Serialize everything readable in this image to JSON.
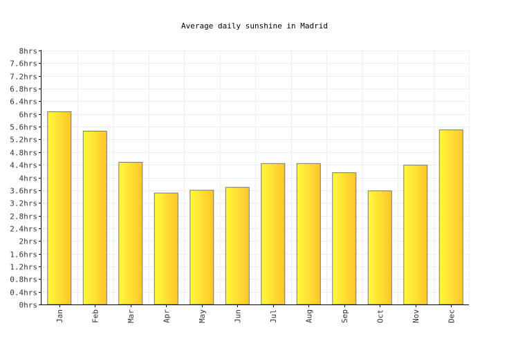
{
  "chart_data": {
    "type": "bar",
    "title": "Average daily sunshine in Madrid",
    "categories": [
      "Jan",
      "Feb",
      "Mar",
      "Apr",
      "May",
      "Jun",
      "Jul",
      "Aug",
      "Sep",
      "Oct",
      "Nov",
      "Dec"
    ],
    "values": [
      6.07,
      5.46,
      4.48,
      3.51,
      3.6,
      3.69,
      4.44,
      4.44,
      4.15,
      3.58,
      4.39,
      5.5
    ],
    "ylim": [
      0,
      8
    ],
    "yticks": [
      "0hrs",
      "0.4hrs",
      "0.8hrs",
      "1.2hrs",
      "1.6hrs",
      "2hrs",
      "2.4hrs",
      "2.8hrs",
      "3.2hrs",
      "3.6hrs",
      "4hrs",
      "4.4hrs",
      "4.8hrs",
      "5.2hrs",
      "5.6hrs",
      "6hrs",
      "6.4hrs",
      "6.8hrs",
      "7.2hrs",
      "7.6hrs",
      "8hrs"
    ],
    "xlabel": "",
    "ylabel": "",
    "grid": true,
    "colors": {
      "bar_light": "#fff93b",
      "bar_dark": "#ffc52a",
      "bar_border": "#777777"
    }
  }
}
